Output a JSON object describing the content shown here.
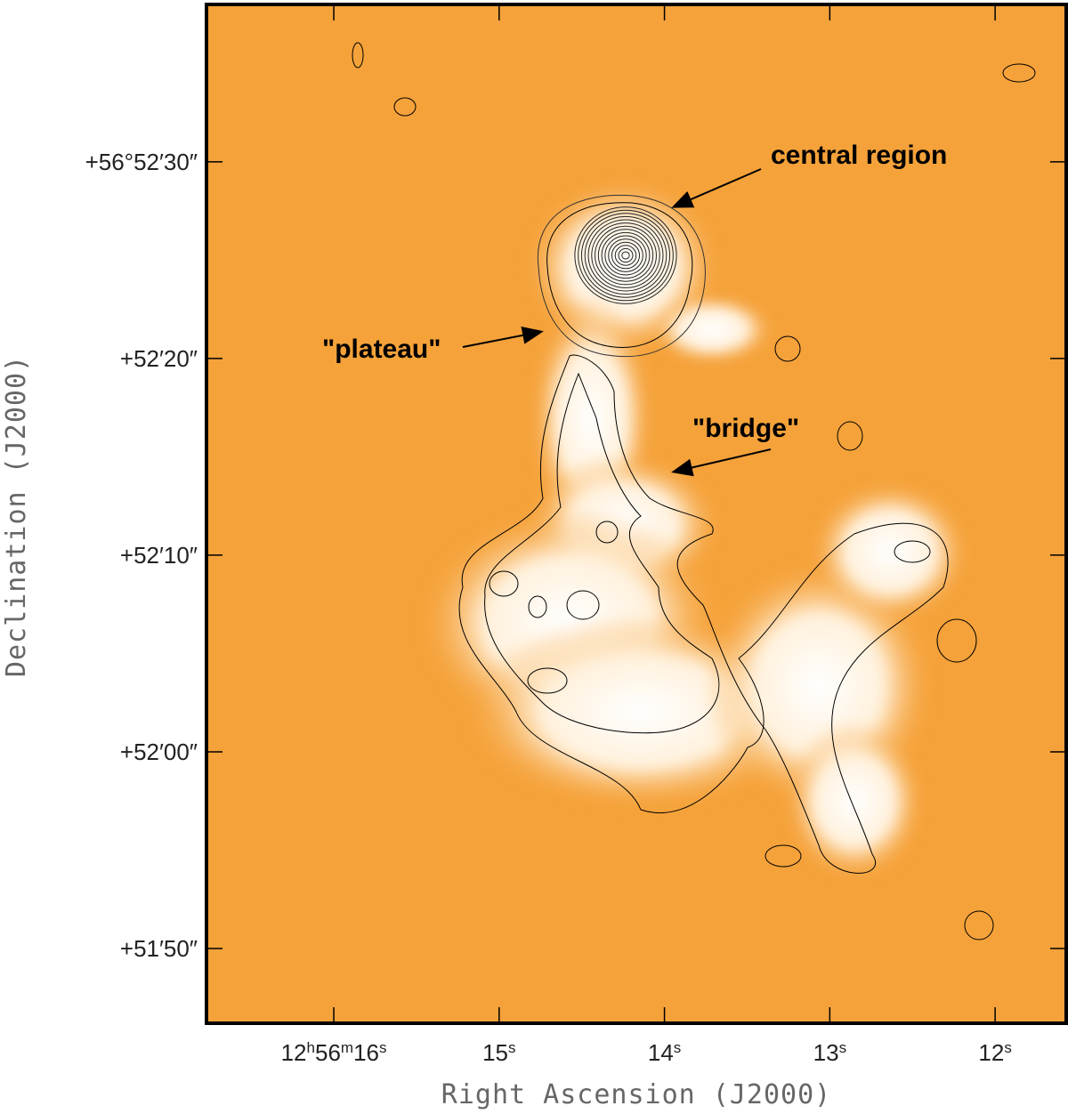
{
  "chart_data": {
    "type": "image",
    "xlabel": "Right Ascension (J2000)",
    "ylabel": "Declination (J2000)",
    "xlim": [
      16.77,
      11.57
    ],
    "ylim": [
      46.2,
      98.0
    ],
    "xticks": [
      {
        "value": 16,
        "label": "12h56m16s"
      },
      {
        "value": 15,
        "label": "15s"
      },
      {
        "value": 14,
        "label": "14s"
      },
      {
        "value": 13,
        "label": "13s"
      },
      {
        "value": 12,
        "label": "12s"
      }
    ],
    "yticks": [
      {
        "value": 90,
        "label": "+56°52′30″"
      },
      {
        "value": 80,
        "label": "+52′20″"
      },
      {
        "value": 70,
        "label": "+52′10″"
      },
      {
        "value": 60,
        "label": "+52′00″"
      },
      {
        "value": 50,
        "label": "+51′50″"
      }
    ],
    "annotations": [
      "central region",
      "\"plateau\"",
      "\"bridge\""
    ]
  }
}
